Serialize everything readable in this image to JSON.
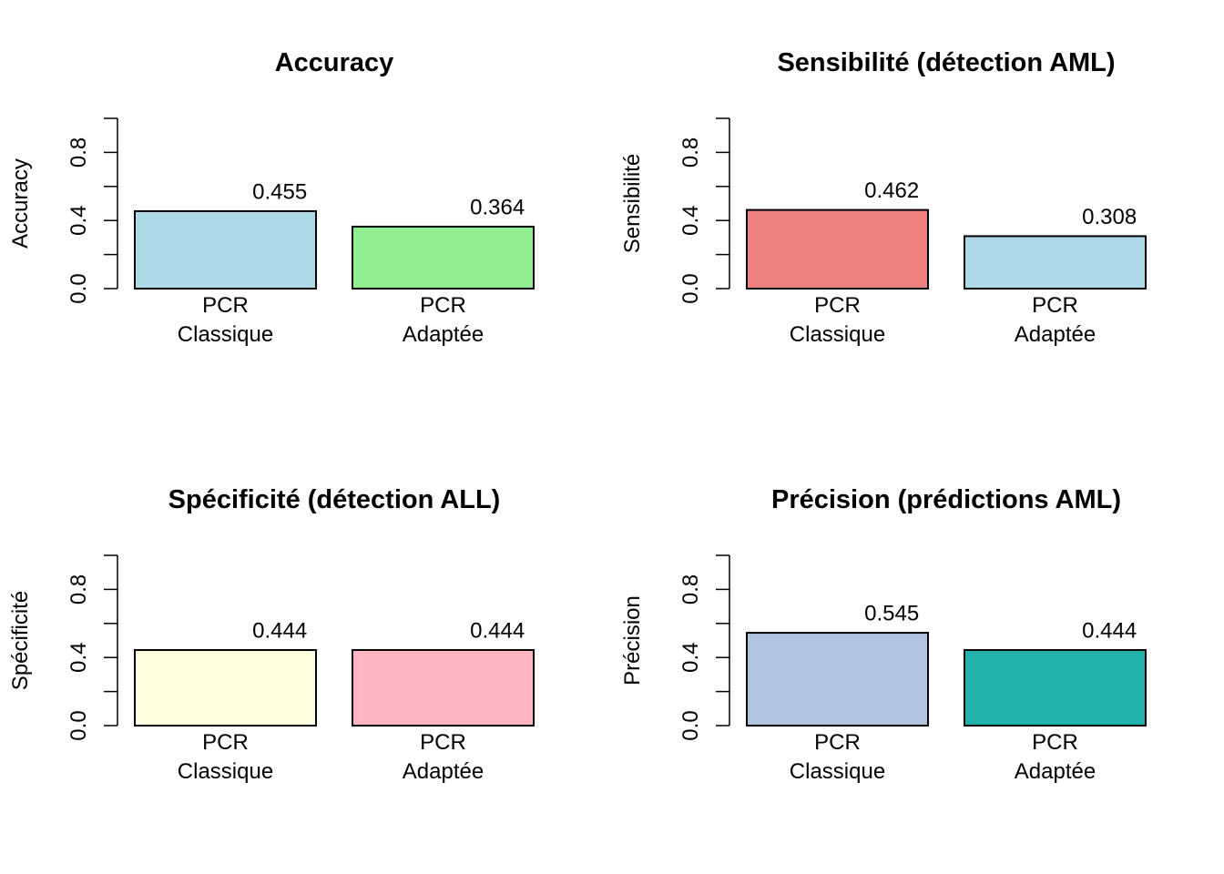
{
  "chart_data": [
    {
      "type": "bar",
      "title": "Accuracy",
      "xlabel": "",
      "ylabel": "Accuracy",
      "categories": [
        "PCR\nClassique",
        "PCR\nAdaptée"
      ],
      "values": [
        0.455,
        0.364
      ],
      "value_labels": [
        "0.455",
        "0.364"
      ],
      "colors": [
        "#ADD8E6",
        "#90EE90"
      ],
      "ylim": [
        0,
        1
      ],
      "yticks": [
        "0.0",
        "0.4",
        "0.8"
      ],
      "grid": false
    },
    {
      "type": "bar",
      "title": "Sensibilité (détection AML)",
      "xlabel": "",
      "ylabel": "Sensibilité",
      "categories": [
        "PCR\nClassique",
        "PCR\nAdaptée"
      ],
      "values": [
        0.462,
        0.308
      ],
      "value_labels": [
        "0.462",
        "0.308"
      ],
      "colors": [
        "#F08080",
        "#ADD8E6"
      ],
      "ylim": [
        0,
        1
      ],
      "yticks": [
        "0.0",
        "0.4",
        "0.8"
      ],
      "grid": false
    },
    {
      "type": "bar",
      "title": "Spécificité (détection ALL)",
      "xlabel": "",
      "ylabel": "Spécificité",
      "categories": [
        "PCR\nClassique",
        "PCR\nAdaptée"
      ],
      "values": [
        0.444,
        0.444
      ],
      "value_labels": [
        "0.444",
        "0.444"
      ],
      "colors": [
        "#FFFFE0",
        "#FFB6C1"
      ],
      "ylim": [
        0,
        1
      ],
      "yticks": [
        "0.0",
        "0.4",
        "0.8"
      ],
      "grid": false
    },
    {
      "type": "bar",
      "title": "Précision (prédictions AML)",
      "xlabel": "",
      "ylabel": "Précision",
      "categories": [
        "PCR\nClassique",
        "PCR\nAdaptée"
      ],
      "values": [
        0.545,
        0.444
      ],
      "value_labels": [
        "0.545",
        "0.444"
      ],
      "colors": [
        "#B0C4DE",
        "#20B2AA"
      ],
      "ylim": [
        0,
        1
      ],
      "yticks": [
        "0.0",
        "0.4",
        "0.8"
      ],
      "grid": false
    }
  ]
}
